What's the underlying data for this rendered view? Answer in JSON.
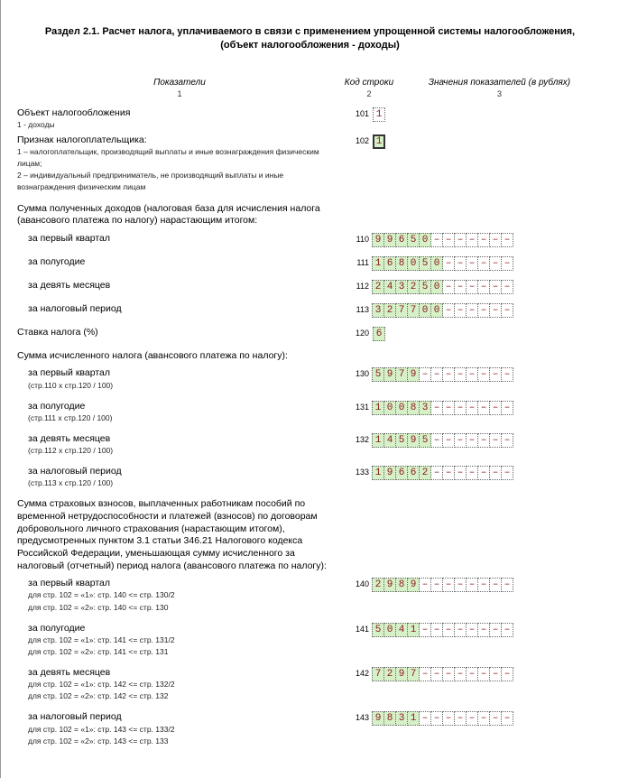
{
  "title_line1": "Раздел 2.1. Расчет налога, уплачиваемого в связи с применением упрощенной системы налогообложения,",
  "title_line2": "(объект налогообложения - доходы)",
  "thead": {
    "c1": "Показатели",
    "c2": "Код строки",
    "c3": "Значения показателей (в рублях)"
  },
  "thead2": {
    "c1": "1",
    "c2": "2",
    "c3": "3"
  },
  "r101": {
    "label": "Объект налогообложения",
    "sub": "1 - доходы",
    "code": "101",
    "val": "1"
  },
  "r102": {
    "label": "Признак налогоплательщика:",
    "sub1": "1 – налогоплательщик, производящий выплаты и иные вознаграждения физическим лицам;",
    "sub2": "2 – индивидуальный предприниматель, не производящий выплаты и иные вознаграждения физическим лицам",
    "code": "102",
    "val": "1"
  },
  "income_header": "Сумма полученных доходов (налоговая база для исчисления налога (авансового платежа по налогу) нарастающим итогом:",
  "r110": {
    "label": "за первый квартал",
    "code": "110",
    "cells": [
      "9",
      "9",
      "6",
      "5",
      "0",
      "–",
      "–",
      "–",
      "–",
      "–",
      "–",
      "–"
    ]
  },
  "r111": {
    "label": "за полугодие",
    "code": "111",
    "cells": [
      "1",
      "6",
      "8",
      "0",
      "5",
      "0",
      "–",
      "–",
      "–",
      "–",
      "–",
      "–"
    ]
  },
  "r112": {
    "label": "за девять месяцев",
    "code": "112",
    "cells": [
      "2",
      "4",
      "3",
      "2",
      "5",
      "0",
      "–",
      "–",
      "–",
      "–",
      "–",
      "–"
    ]
  },
  "r113": {
    "label": "за налоговый период",
    "code": "113",
    "cells": [
      "3",
      "2",
      "7",
      "7",
      "0",
      "0",
      "–",
      "–",
      "–",
      "–",
      "–",
      "–"
    ]
  },
  "r120": {
    "label": "Ставка налога (%)",
    "code": "120",
    "val": "6"
  },
  "calc_header": "Сумма исчисленного налога (авансового платежа по налогу):",
  "r130": {
    "label": "за первый квартал",
    "sub": "(стр.110 x стр.120 / 100)",
    "code": "130",
    "cells": [
      "5",
      "9",
      "7",
      "9",
      "–",
      "–",
      "–",
      "–",
      "–",
      "–",
      "–",
      "–"
    ]
  },
  "r131": {
    "label": "за полугодие",
    "sub": "(стр.111 x стр.120 / 100)",
    "code": "131",
    "cells": [
      "1",
      "0",
      "0",
      "8",
      "3",
      "–",
      "–",
      "–",
      "–",
      "–",
      "–",
      "–"
    ]
  },
  "r132": {
    "label": "за девять месяцев",
    "sub": "(стр.112 x стр.120 / 100)",
    "code": "132",
    "cells": [
      "1",
      "4",
      "5",
      "9",
      "5",
      "–",
      "–",
      "–",
      "–",
      "–",
      "–",
      "–"
    ]
  },
  "r133": {
    "label": "за налоговый период",
    "sub": "(стр.113 x стр.120 / 100)",
    "code": "133",
    "cells": [
      "1",
      "9",
      "6",
      "6",
      "2",
      "–",
      "–",
      "–",
      "–",
      "–",
      "–",
      "–"
    ]
  },
  "ins_header": "Сумма страховых взносов, выплаченных работникам пособий по временной нетрудоспособности и платежей (взносов) по договорам добровольного личного страхования (нарастающим итогом), предусмотренных пунктом 3.1 статьи 346.21 Налогового кодекса Российской Федерации, уменьшающая сумму исчисленного за налоговый (отчетный) период налога (авансового платежа по налогу):",
  "r140": {
    "label": "за первый квартал",
    "sub1": "для стр. 102 = «1»: стр. 140 <= стр. 130/2",
    "sub2": "для стр. 102 = «2»: стр. 140 <= стр. 130",
    "code": "140",
    "cells": [
      "2",
      "9",
      "8",
      "9",
      "–",
      "–",
      "–",
      "–",
      "–",
      "–",
      "–",
      "–"
    ]
  },
  "r141": {
    "label": "за полугодие",
    "sub1": "для стр. 102 = «1»: стр. 141 <= стр. 131/2",
    "sub2": "для стр. 102 = «2»: стр. 141 <= стр. 131",
    "code": "141",
    "cells": [
      "5",
      "0",
      "4",
      "1",
      "–",
      "–",
      "–",
      "–",
      "–",
      "–",
      "–",
      "–"
    ]
  },
  "r142": {
    "label": "за девять месяцев",
    "sub1": "для стр. 102 = «1»: стр. 142 <= стр. 132/2",
    "sub2": "для стр. 102 = «2»: стр. 142 <= стр. 132",
    "code": "142",
    "cells": [
      "7",
      "2",
      "9",
      "7",
      "–",
      "–",
      "–",
      "–",
      "–",
      "–",
      "–",
      "–"
    ]
  },
  "r143": {
    "label": "за налоговый период",
    "sub1": "для стр. 102 = «1»: стр. 143 <= стр. 133/2",
    "sub2": "для стр. 102 = «2»: стр. 143 <= стр. 133",
    "code": "143",
    "cells": [
      "9",
      "8",
      "3",
      "1",
      "–",
      "–",
      "–",
      "–",
      "–",
      "–",
      "–",
      "–"
    ]
  },
  "style": {
    "cell_fill_color": "#d6f0c8",
    "cell_text_color": "#8a1a1a",
    "cell_border": "1px dotted #666",
    "font_family": "Arial",
    "mono_family": "Courier New",
    "cell_count": 12
  }
}
